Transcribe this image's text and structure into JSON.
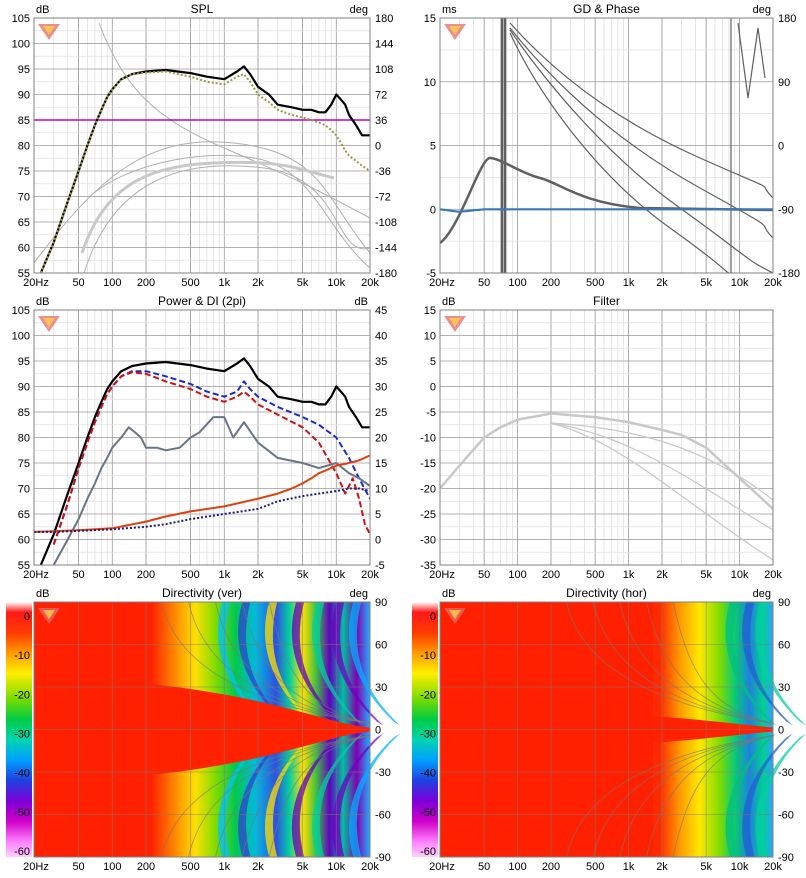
{
  "freq_ticks": [
    "20Hz",
    "50",
    "100",
    "200",
    "500",
    "1k",
    "2k",
    "5k",
    "10k",
    "20k"
  ],
  "chart_data": [
    {
      "id": "spl",
      "type": "line",
      "title": "SPL",
      "left_unit": "dB",
      "right_unit": "deg",
      "left_ticks": [
        "105",
        "100",
        "95",
        "90",
        "85",
        "80",
        "75",
        "70",
        "65",
        "60",
        "55"
      ],
      "right_ticks": [
        "180",
        "144",
        "108",
        "72",
        "36",
        "0",
        "-36",
        "-72",
        "-108",
        "-144",
        "-180"
      ],
      "ylim": [
        55,
        105
      ],
      "xlim": [
        20,
        20000
      ],
      "x_scale": "log",
      "reference_line": {
        "y": 85,
        "color": "#c000c0"
      },
      "series": [
        {
          "color": "#000000",
          "style": "solid",
          "x": [
            23,
            30,
            40,
            50,
            60,
            70,
            80,
            90,
            100,
            120,
            150,
            200,
            300,
            500,
            700,
            1000,
            1300,
            1500,
            1700,
            2000,
            2500,
            3000,
            4000,
            5000,
            6000,
            7000,
            8000,
            9000,
            10000,
            11000,
            12000,
            13000,
            15000,
            17000,
            20000
          ],
          "y": [
            55,
            61,
            69,
            75,
            80,
            84,
            87,
            89.5,
            91,
            93,
            94,
            94.5,
            94.8,
            94.2,
            93.5,
            93,
            94.5,
            95.5,
            94,
            91.5,
            90,
            88,
            87.5,
            87,
            87,
            86.5,
            86.5,
            88,
            90,
            89,
            88,
            86,
            84,
            82,
            82
          ]
        },
        {
          "color": "#9a9a40",
          "style": "dotted",
          "x": [
            23,
            30,
            40,
            50,
            60,
            70,
            80,
            90,
            100,
            120,
            150,
            200,
            300,
            500,
            700,
            1000,
            1300,
            1500,
            1700,
            2000,
            2500,
            3000,
            4000,
            5000,
            6000,
            7000,
            8000,
            9000,
            10000,
            11000,
            12000,
            13000,
            15000,
            17000,
            20000
          ],
          "y": [
            55,
            61,
            69,
            75,
            80,
            84,
            87,
            89.5,
            91,
            93,
            94,
            94.3,
            94.5,
            93.5,
            92.5,
            92,
            93.5,
            94,
            92.5,
            90,
            88.5,
            87,
            86,
            85.5,
            85,
            84.5,
            84,
            83,
            82,
            80.5,
            79,
            78,
            77,
            76,
            75
          ]
        }
      ]
    },
    {
      "id": "gd",
      "type": "line",
      "title": "GD & Phase",
      "left_unit": "ms",
      "right_unit": "deg",
      "left_ticks": [
        "15",
        "10",
        "5",
        "0",
        "-5"
      ],
      "right_ticks": [
        "180",
        "90",
        "0",
        "-90",
        "-180"
      ],
      "ylim": [
        -5,
        15
      ],
      "xlim": [
        20,
        20000
      ],
      "x_scale": "log",
      "series": [
        {
          "color": "#3a78b8",
          "style": "solid",
          "x": [
            20,
            30,
            50,
            100,
            200,
            500,
            1000,
            2000,
            5000,
            10000,
            20000
          ],
          "y": [
            0,
            -0.2,
            0,
            0,
            0,
            0,
            0,
            0,
            0,
            0,
            0
          ]
        }
      ]
    },
    {
      "id": "power",
      "type": "line",
      "title": "Power & DI (2pi)",
      "left_unit": "dB",
      "right_unit": "dB",
      "left_ticks": [
        "105",
        "100",
        "95",
        "90",
        "85",
        "80",
        "75",
        "70",
        "65",
        "60",
        "55"
      ],
      "right_ticks": [
        "45",
        "40",
        "35",
        "30",
        "25",
        "20",
        "15",
        "10",
        "5",
        "0",
        "-5"
      ],
      "ylim": [
        55,
        105
      ],
      "xlim": [
        20,
        20000
      ],
      "x_scale": "log",
      "series": [
        {
          "color": "#000000",
          "style": "solid",
          "x": [
            23,
            30,
            40,
            50,
            60,
            70,
            80,
            90,
            100,
            120,
            150,
            200,
            300,
            500,
            700,
            1000,
            1300,
            1500,
            1700,
            2000,
            2500,
            3000,
            4000,
            5000,
            6000,
            7000,
            8000,
            9000,
            10000,
            11000,
            12000,
            13000,
            15000,
            17000,
            20000
          ],
          "y": [
            55,
            61,
            69,
            75,
            80,
            84,
            87,
            89.5,
            91,
            93,
            94,
            94.5,
            94.8,
            94.2,
            93.5,
            93,
            94.5,
            95.5,
            94,
            91.5,
            90,
            88,
            87.5,
            87,
            87,
            86.5,
            86.5,
            88,
            90,
            89,
            88,
            86,
            84,
            82,
            82
          ]
        },
        {
          "color": "#1a2ad0",
          "style": "dashed",
          "x": [
            30,
            40,
            50,
            60,
            70,
            80,
            90,
            100,
            120,
            150,
            200,
            300,
            500,
            700,
            1000,
            1300,
            1500,
            1700,
            2000,
            3000,
            5000,
            7000,
            10000,
            13000,
            16000,
            20000
          ],
          "y": [
            59,
            67,
            74,
            79,
            83,
            86,
            88.5,
            90,
            92,
            93,
            93,
            92,
            90.5,
            89,
            88,
            89,
            91,
            89.5,
            88,
            86,
            84,
            82.5,
            80,
            76,
            72,
            68
          ]
        },
        {
          "color": "#d01010",
          "style": "dashed",
          "x": [
            30,
            40,
            50,
            60,
            70,
            80,
            90,
            100,
            120,
            150,
            200,
            300,
            500,
            700,
            1000,
            1300,
            1500,
            1700,
            2000,
            3000,
            5000,
            7000,
            10000,
            12000,
            14000,
            16000,
            18000,
            20000
          ],
          "y": [
            59,
            67,
            74,
            79,
            83,
            86,
            88.5,
            90,
            92,
            92.8,
            92.5,
            91,
            89.5,
            88,
            87,
            88,
            89,
            88,
            86.5,
            84.5,
            82,
            79,
            73,
            69,
            72,
            68,
            63,
            61
          ]
        },
        {
          "color": "#6a7488",
          "style": "solid",
          "x": [
            30,
            40,
            50,
            60,
            70,
            80,
            90,
            100,
            120,
            140,
            160,
            180,
            200,
            250,
            300,
            400,
            500,
            600,
            800,
            1000,
            1200,
            1500,
            2000,
            3000,
            5000,
            7000,
            10000,
            13000,
            16000,
            20000
          ],
          "y": [
            -5,
            0,
            4,
            8,
            11,
            14,
            16,
            18,
            20,
            22,
            21,
            20,
            18,
            18,
            17.5,
            18,
            20,
            21,
            24,
            24,
            20,
            23,
            19,
            16,
            15,
            14,
            15,
            13,
            12,
            10.5
          ]
        },
        {
          "color": "#e04010",
          "style": "solid",
          "x": [
            20,
            30,
            50,
            100,
            200,
            300,
            500,
            1000,
            2000,
            3000,
            4000,
            5000,
            6000,
            7000,
            8000,
            10000,
            13000,
            16000,
            20000
          ],
          "y": [
            1.5,
            1.6,
            1.8,
            2.2,
            3.5,
            4.5,
            5.5,
            6.5,
            8,
            9,
            10,
            11,
            12,
            13,
            13.5,
            14.5,
            15,
            15.5,
            16.5
          ]
        },
        {
          "color": "#1a1a80",
          "style": "dotted",
          "x": [
            20,
            30,
            50,
            100,
            200,
            300,
            500,
            1000,
            2000,
            3000,
            5000,
            7000,
            10000,
            13000,
            16000,
            20000
          ],
          "y": [
            1.5,
            1.5,
            1.7,
            2,
            2.5,
            3,
            4,
            5,
            6,
            7.5,
            8.5,
            9,
            9.5,
            10,
            10,
            9.5
          ]
        }
      ]
    },
    {
      "id": "filter",
      "type": "line",
      "title": "Filter",
      "left_unit": "dB",
      "left_ticks": [
        "15",
        "10",
        "5",
        "0",
        "-5",
        "-10",
        "-15",
        "-20",
        "-25",
        "-30",
        "-35"
      ],
      "ylim": [
        -35,
        15
      ],
      "xlim": [
        20,
        20000
      ],
      "x_scale": "log",
      "series": [
        {
          "color": "#c8c8c8",
          "style": "solid",
          "x": [
            20,
            30,
            50,
            70,
            100,
            150,
            200,
            300,
            500,
            1000,
            2000,
            3000,
            5000,
            10000,
            20000
          ],
          "y": [
            -20,
            -15.5,
            -10,
            -8,
            -6.5,
            -5.8,
            -5.3,
            -5.6,
            -6,
            -7,
            -8.5,
            -9.5,
            -12,
            -18,
            -24
          ]
        }
      ]
    },
    {
      "id": "dir_ver",
      "type": "heatmap",
      "title": "Directivity (ver)",
      "left_unit": "dB",
      "right_unit": "deg",
      "right_ticks": [
        "90",
        "60",
        "30",
        "0",
        "-30",
        "-60",
        "-90"
      ],
      "colorbar_ticks": [
        "0",
        "-10",
        "-20",
        "-30",
        "-40",
        "-50",
        "-60"
      ]
    },
    {
      "id": "dir_hor",
      "type": "heatmap",
      "title": "Directivity (hor)",
      "left_unit": "dB",
      "right_unit": "deg",
      "right_ticks": [
        "90",
        "60",
        "30",
        "0",
        "-30",
        "-60",
        "-90"
      ],
      "colorbar_ticks": [
        "0",
        "-10",
        "-20",
        "-30",
        "-40",
        "-50",
        "-60"
      ]
    }
  ]
}
